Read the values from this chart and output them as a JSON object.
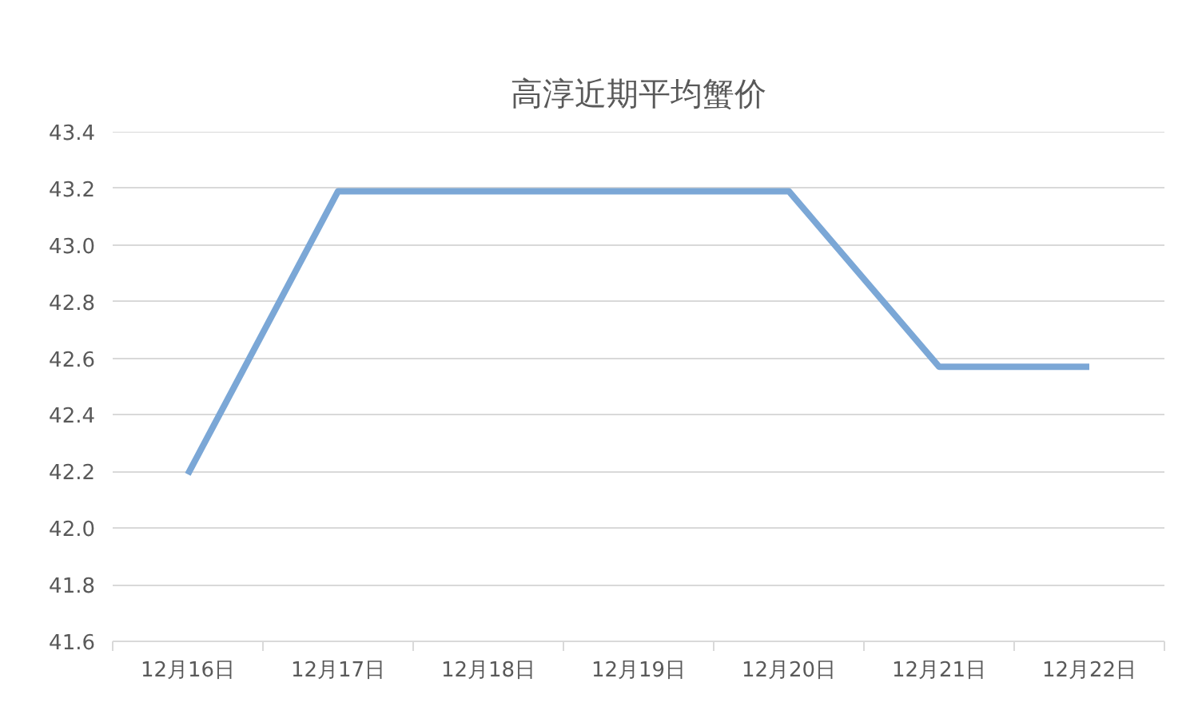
{
  "chart_data": {
    "type": "line",
    "title": "高淳近期平均蟹价",
    "categories": [
      "12月16日",
      "12月17日",
      "12月18日",
      "12月19日",
      "12月20日",
      "12月21日",
      "12月22日"
    ],
    "series": [
      {
        "color": "#7ba7d6",
        "values": [
          42.19,
          43.19,
          43.19,
          43.19,
          43.19,
          42.57,
          42.57
        ]
      }
    ],
    "ylim": [
      41.6,
      43.4
    ],
    "yticks": [
      41.6,
      41.8,
      {
        "value": 42,
        "label": "42.0"
      },
      42.2,
      42.4,
      42.6,
      42.8,
      {
        "value": 43,
        "label": "43.0"
      },
      43.2,
      43.4
    ],
    "grid": "y",
    "marker": "none",
    "line_style": "solid"
  }
}
